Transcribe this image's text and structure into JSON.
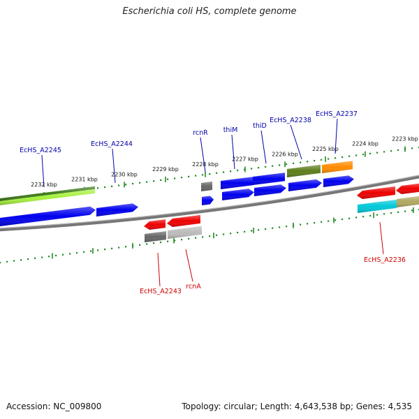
{
  "header": {
    "title": "Escherichia coli HS, complete genome"
  },
  "footer": {
    "accession": "Accession: NC_009800",
    "summary": "Topology: circular; Length: 4,643,538 bp; Genes: 4,535"
  },
  "ruler": {
    "ticks": [
      {
        "label": "2232 kbp"
      },
      {
        "label": "2231 kbp"
      },
      {
        "label": "2230 kbp"
      },
      {
        "label": "2229 kbp"
      },
      {
        "label": "2228 kbp"
      },
      {
        "label": "2227 kbp"
      },
      {
        "label": "2226 kbp"
      },
      {
        "label": "2225 kbp"
      },
      {
        "label": "2224 kbp"
      },
      {
        "label": "2223 kbp"
      }
    ]
  },
  "colors": {
    "forward_label": "#0000aa",
    "reverse_label": "#cc0000",
    "backbone": "#888888",
    "ruler": "#228b22",
    "gene_blue": "#0000ee",
    "gene_red": "#ee0000",
    "gene_green_dark": "#3d7a1a",
    "gene_green_light": "#a6f03c",
    "gene_olive": "#5e7d1c",
    "gene_orange": "#ff8c00",
    "gene_gray_dark": "#666666",
    "gene_gray_light": "#bbbbbb",
    "gene_cyan": "#00c8d8",
    "gene_khaki": "#b0a860"
  },
  "gene_labels": [
    {
      "text": "EcHS_A2245",
      "strand": "forward"
    },
    {
      "text": "EcHS_A2244",
      "strand": "forward"
    },
    {
      "text": "rcnR",
      "strand": "forward"
    },
    {
      "text": "thiM",
      "strand": "forward"
    },
    {
      "text": "thiD",
      "strand": "forward"
    },
    {
      "text": "EcHS_A2238",
      "strand": "forward"
    },
    {
      "text": "EcHS_A2237",
      "strand": "forward"
    },
    {
      "text": "EcHS_A2243",
      "strand": "reverse"
    },
    {
      "text": "rcnA",
      "strand": "reverse"
    },
    {
      "text": "EcHS_A2236",
      "strand": "reverse"
    }
  ]
}
